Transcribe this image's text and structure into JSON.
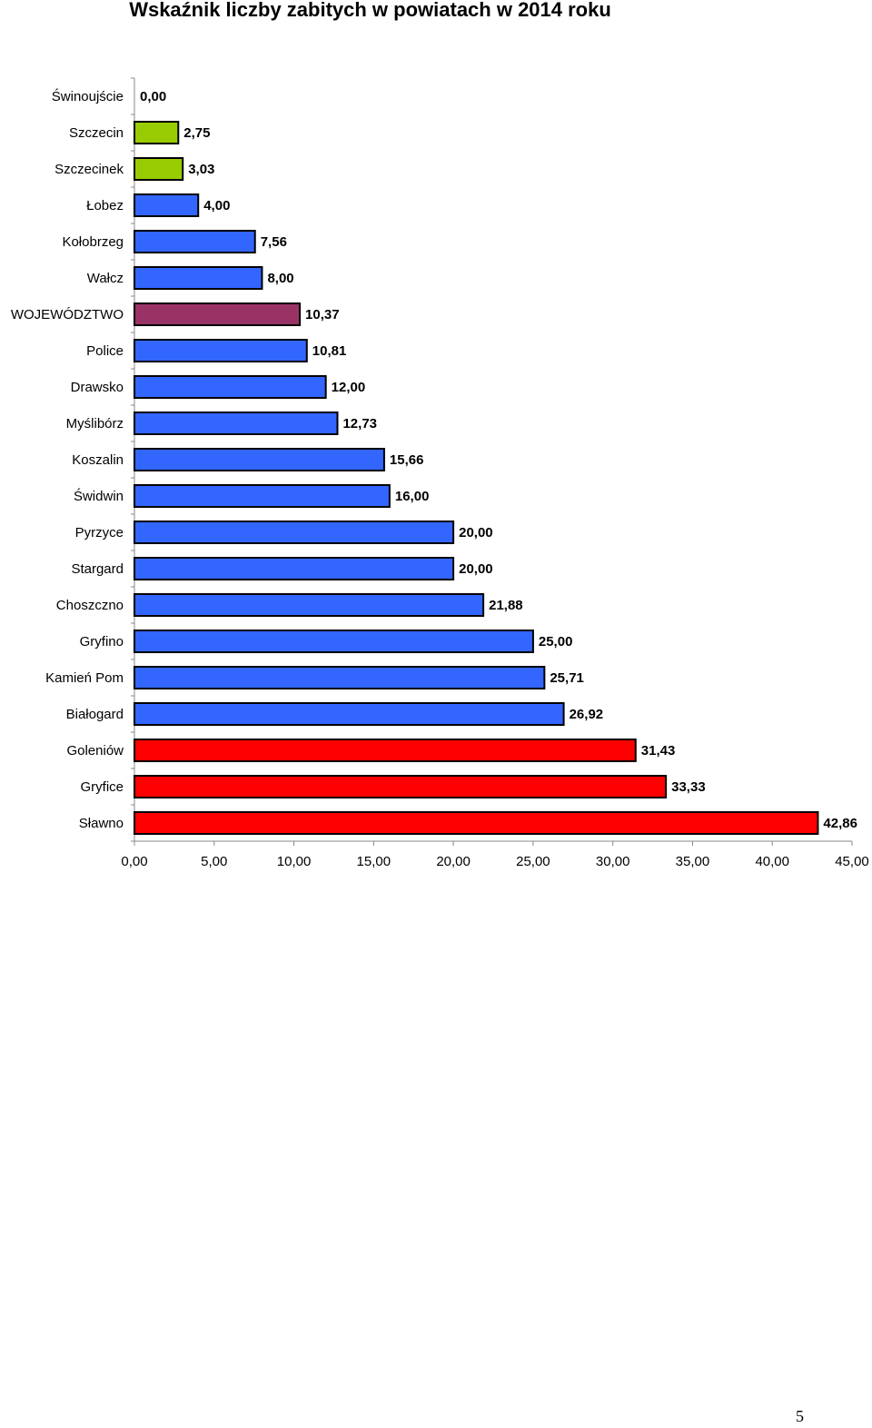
{
  "page": {
    "title": "Wskaźnik liczby zabitych w powiatach w 2014 roku",
    "page_number": "5"
  },
  "chart_data": {
    "type": "bar",
    "orientation": "horizontal",
    "title": "Wskaźnik liczby zabitych w powiatach w 2014 roku",
    "xlabel": "",
    "ylabel": "",
    "xlim": [
      0,
      45
    ],
    "x_ticks": [
      0,
      5,
      10,
      15,
      20,
      25,
      30,
      35,
      40,
      45
    ],
    "x_tick_labels": [
      "0,00",
      "5,00",
      "10,00",
      "15,00",
      "20,00",
      "25,00",
      "30,00",
      "35,00",
      "40,00",
      "45,00"
    ],
    "grid": false,
    "legend": "none",
    "bar_outline_color": "#000000",
    "categories": [
      "Świnoujście",
      "Szczecin",
      "Szczecinek",
      "Łobez",
      "Kołobrzeg",
      "Wałcz",
      "WOJEWÓDZTWO",
      "Police",
      "Drawsko",
      "Myślibórz",
      "Koszalin",
      "Świdwin",
      "Pyrzyce",
      "Stargard",
      "Choszczno",
      "Gryfino",
      "Kamień Pom",
      "Białogard",
      "Goleniów",
      "Gryfice",
      "Sławno"
    ],
    "values": [
      0.0,
      2.75,
      3.03,
      4.0,
      7.56,
      8.0,
      10.37,
      10.81,
      12.0,
      12.73,
      15.66,
      16.0,
      20.0,
      20.0,
      21.88,
      25.0,
      25.71,
      26.92,
      31.43,
      33.33,
      42.86
    ],
    "value_labels": [
      "0,00",
      "2,75",
      "3,03",
      "4,00",
      "7,56",
      "8,00",
      "10,37",
      "10,81",
      "12,00",
      "12,73",
      "15,66",
      "16,00",
      "20,00",
      "20,00",
      "21,88",
      "25,00",
      "25,71",
      "26,92",
      "31,43",
      "33,33",
      "42,86"
    ],
    "bar_colors": [
      "#3366ff",
      "#99cc00",
      "#99cc00",
      "#3366ff",
      "#3366ff",
      "#3366ff",
      "#993366",
      "#3366ff",
      "#3366ff",
      "#3366ff",
      "#3366ff",
      "#3366ff",
      "#3366ff",
      "#3366ff",
      "#3366ff",
      "#3366ff",
      "#3366ff",
      "#3366ff",
      "#ff0000",
      "#ff0000",
      "#ff0000"
    ]
  }
}
